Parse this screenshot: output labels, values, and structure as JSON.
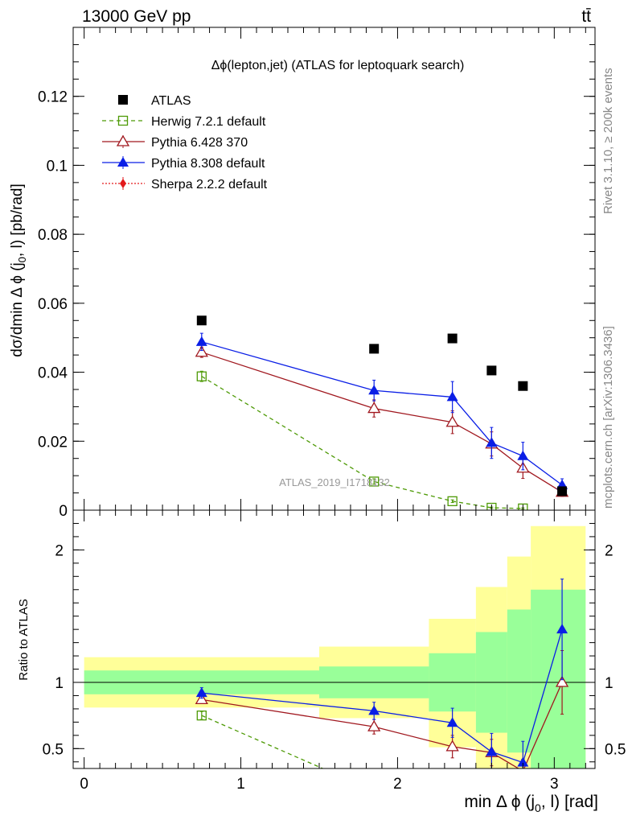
{
  "header": {
    "energy": "13000 GeV pp",
    "process": "tt̄"
  },
  "side_labels": {
    "rivet": "Rivet 3.1.10, ≥ 200k events",
    "mcplots": "mcplots.cern.ch [arXiv:1306.3436]"
  },
  "analysis_id": "ATLAS_2019_I1718132",
  "chart_data": [
    {
      "type": "scatter",
      "title": "Δϕ(lepton,jet) (ATLAS for leptoquark search)",
      "ylabel": "dσ/dmin Δ ϕ (j0, l) [pb/rad]",
      "ylim": [
        0,
        0.14
      ],
      "yticks": [
        0,
        0.02,
        0.04,
        0.06,
        0.08,
        0.1,
        0.12
      ],
      "ytick_labels": [
        "0",
        "0.02",
        "0.04",
        "0.06",
        "0.08",
        "0.1",
        "0.12"
      ],
      "xlim": [
        -0.07,
        3.26
      ],
      "legend_position": "top-left",
      "series": [
        {
          "name": "ATLAS",
          "color": "#000000",
          "marker": "filled-square",
          "line": "none",
          "x": [
            0.75,
            1.85,
            2.35,
            2.6,
            2.8,
            3.05
          ],
          "y": [
            0.055,
            0.0468,
            0.0498,
            0.0405,
            0.036,
            0.0055
          ]
        },
        {
          "name": "Herwig 7.2.1 default",
          "color": "#4e9a06",
          "marker": "open-square",
          "line": "dashed",
          "x": [
            0.75,
            1.85,
            2.35,
            2.6,
            2.8
          ],
          "y": [
            0.0388,
            0.0083,
            0.0026,
            0.0007,
            0.0005
          ],
          "err": [
            0.0015,
            0.0008,
            0.0004,
            0.0002,
            0.0002
          ]
        },
        {
          "name": "Pythia 6.428 370",
          "color": "#a0171e",
          "marker": "open-triangle",
          "line": "solid",
          "x": [
            0.75,
            1.85,
            2.35,
            2.6,
            2.8,
            3.05
          ],
          "y": [
            0.0458,
            0.0295,
            0.0255,
            0.0192,
            0.0122,
            0.0052
          ],
          "err": [
            0.0015,
            0.0025,
            0.0033,
            0.0035,
            0.003,
            0.0012
          ]
        },
        {
          "name": "Pythia 8.308 default",
          "color": "#0a1ee6",
          "marker": "filled-triangle",
          "line": "solid",
          "x": [
            0.75,
            1.85,
            2.35,
            2.6,
            2.8,
            3.05
          ],
          "y": [
            0.0488,
            0.0347,
            0.0328,
            0.0195,
            0.0157,
            0.0073
          ],
          "err": [
            0.0025,
            0.003,
            0.0045,
            0.0045,
            0.004,
            0.0018
          ]
        },
        {
          "name": "Sherpa 2.2.2 default",
          "color": "#e31a1c",
          "marker": "filled-diamond",
          "line": "dotted",
          "x": [],
          "y": []
        }
      ]
    },
    {
      "type": "line",
      "ylabel": "Ratio to ATLAS",
      "xlabel": "min Δ ϕ (j0, l) [rad]",
      "ylim": [
        0.35,
        2.3
      ],
      "xlim": [
        -0.07,
        3.26
      ],
      "yticks": [
        0.5,
        1,
        2
      ],
      "ytick_labels": [
        "0.5",
        "1",
        "2"
      ],
      "xticks": [
        0,
        1,
        2,
        3
      ],
      "xtick_labels": [
        "0",
        "1",
        "2",
        "3"
      ],
      "reference_line": 1,
      "bands": {
        "bins": [
          [
            0,
            1.5
          ],
          [
            1.5,
            2.2
          ],
          [
            2.2,
            2.5
          ],
          [
            2.5,
            2.7
          ],
          [
            2.7,
            2.85
          ],
          [
            2.85,
            3.2
          ]
        ],
        "inner": [
          [
            0.91,
            1.09
          ],
          [
            0.88,
            1.12
          ],
          [
            0.78,
            1.22
          ],
          [
            0.62,
            1.38
          ],
          [
            0.47,
            1.55
          ],
          [
            0.3,
            1.7
          ]
        ],
        "outer": [
          [
            0.81,
            1.19
          ],
          [
            0.73,
            1.27
          ],
          [
            0.51,
            1.48
          ],
          [
            0.3,
            1.72
          ],
          [
            0.15,
            1.95
          ],
          [
            0.1,
            2.18
          ]
        ]
      },
      "series": [
        {
          "name": "Herwig 7.2.1 default",
          "color": "#4e9a06",
          "marker": "open-square",
          "line": "dashed",
          "x": [
            0.75,
            1.85
          ],
          "y": [
            0.75,
            0.18
          ],
          "err": [
            0.03,
            0
          ]
        },
        {
          "name": "Pythia 6.428 370",
          "color": "#a0171e",
          "marker": "open-triangle",
          "line": "solid",
          "x": [
            0.75,
            1.85,
            2.35,
            2.6,
            2.8,
            3.05
          ],
          "y": [
            0.87,
            0.665,
            0.515,
            0.47,
            0.33,
            1.0
          ],
          "err": [
            0.03,
            0.055,
            0.085,
            0.1,
            0.09,
            0.24
          ]
        },
        {
          "name": "Pythia 8.308 default",
          "color": "#0a1ee6",
          "marker": "filled-triangle",
          "line": "solid",
          "x": [
            0.75,
            1.85,
            2.35,
            2.6,
            2.8,
            3.05
          ],
          "y": [
            0.92,
            0.785,
            0.695,
            0.475,
            0.395,
            1.4
          ],
          "err": [
            0.04,
            0.065,
            0.11,
            0.14,
            0.16,
            0.38
          ]
        }
      ]
    }
  ]
}
